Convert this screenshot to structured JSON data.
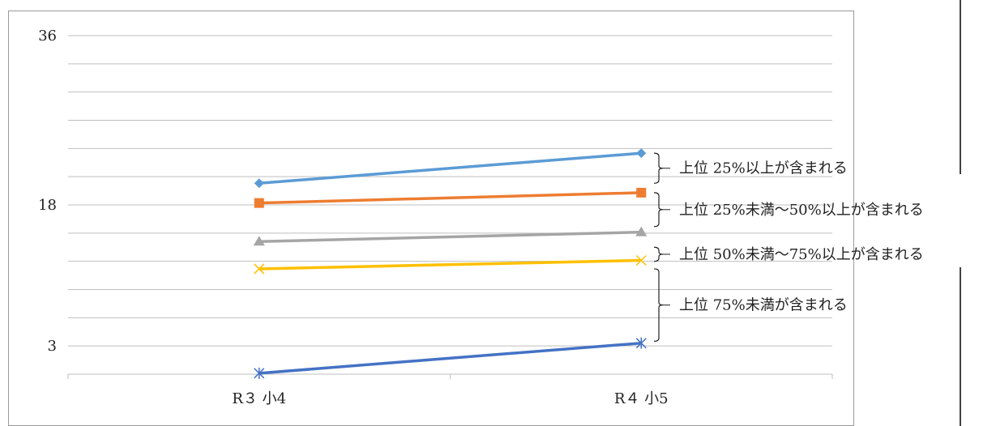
{
  "chart_data": {
    "type": "line",
    "categories": [
      "R３ 小4",
      "R４ 小5"
    ],
    "y_tick_labels": [
      "36",
      "18",
      "3"
    ],
    "grid": true,
    "legend": "none",
    "series": [
      {
        "color": "#5b9bd5",
        "marker": "diamond",
        "values": [
          20.3,
          23.5
        ]
      },
      {
        "color": "#ed7d31",
        "marker": "square",
        "values": [
          18.2,
          19.3
        ]
      },
      {
        "color": "#a5a5a5",
        "marker": "triangle",
        "values": [
          14.1,
          15.1
        ]
      },
      {
        "color": "#ffc000",
        "marker": "x",
        "values": [
          11.2,
          12.1
        ]
      },
      {
        "color": "#4472c4",
        "marker": "star",
        "values": [
          0.1,
          3.3
        ]
      }
    ],
    "annotations": [
      {
        "text": "上位 25%以上が含まれる",
        "range": [
          20.3,
          23.5
        ]
      },
      {
        "text": "上位 25%未満～50%以上が含まれる",
        "range": [
          15.7,
          19.3
        ]
      },
      {
        "text": "上位 50%未満～75%以上が含まれる",
        "range": [
          12.0,
          13.5
        ]
      },
      {
        "text": "上位 75%未満が含まれる",
        "range": [
          3.5,
          11.2
        ]
      }
    ]
  }
}
